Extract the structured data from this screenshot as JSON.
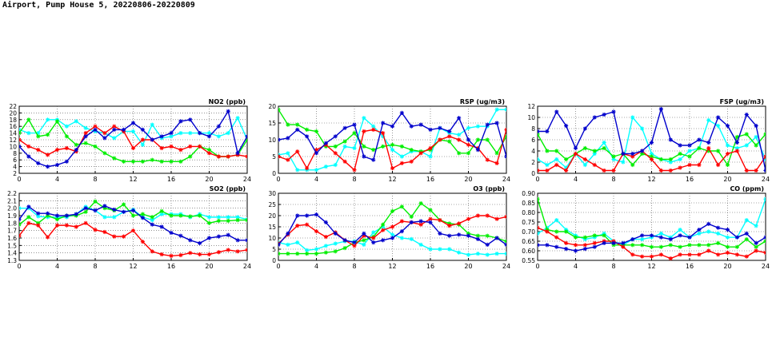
{
  "page": {
    "title": "Airport, Pump House 5, 20220806-20220809"
  },
  "colors": {
    "series": [
      "#0000cc",
      "#ff0000",
      "#00ee00",
      "#00ffff"
    ],
    "grid": "#555555",
    "axis": "#000000"
  },
  "chart_data": [
    {
      "type": "line",
      "title": "NO2 (ppb)",
      "x": [
        0,
        1,
        2,
        3,
        4,
        5,
        6,
        7,
        8,
        9,
        10,
        11,
        12,
        13,
        14,
        15,
        16,
        17,
        18,
        19,
        20,
        21,
        22,
        23,
        24
      ],
      "xlim": [
        0,
        24
      ],
      "xticks": [
        "0",
        "4",
        "8",
        "12",
        "16",
        "20",
        "24"
      ],
      "ylim": [
        2,
        22
      ],
      "yticks": [
        "2",
        "4",
        "6",
        "8",
        "10",
        "12",
        "14",
        "16",
        "18",
        "20",
        "22"
      ],
      "series": [
        {
          "name": "blue",
          "values": [
            10,
            7,
            5,
            4,
            4.5,
            5.5,
            9,
            13,
            15,
            12.5,
            15,
            15,
            17,
            15,
            12,
            13,
            14,
            17.5,
            18,
            14,
            13,
            16,
            20.5,
            8,
            13
          ]
        },
        {
          "name": "red",
          "values": [
            12,
            10,
            9,
            7.5,
            9,
            9.5,
            8.5,
            14,
            16,
            14,
            16,
            14.5,
            9.5,
            12,
            12,
            9.5,
            10,
            9,
            10,
            10,
            8,
            7,
            7,
            7.5,
            7
          ]
        },
        {
          "name": "green",
          "values": [
            14,
            18,
            13,
            13.5,
            17.5,
            13,
            10.5,
            11,
            10,
            8,
            6.5,
            5.5,
            5.5,
            5.5,
            6,
            5.5,
            5.5,
            5.5,
            7,
            10,
            9,
            7,
            7,
            7.5,
            12
          ]
        },
        {
          "name": "cyan",
          "values": [
            15,
            14,
            14,
            18,
            18,
            16,
            17.5,
            15.5,
            14.5,
            14,
            12.5,
            14.5,
            14.5,
            10.5,
            16.5,
            12.5,
            13,
            14,
            14,
            14,
            14,
            13,
            14,
            18.5,
            12
          ]
        }
      ]
    },
    {
      "type": "line",
      "title": "RSP (ug/m3)",
      "x": [
        0,
        1,
        2,
        3,
        4,
        5,
        6,
        7,
        8,
        9,
        10,
        11,
        12,
        13,
        14,
        15,
        16,
        17,
        18,
        19,
        20,
        21,
        22,
        23,
        24
      ],
      "xlim": [
        0,
        24
      ],
      "xticks": [
        "0",
        "4",
        "8",
        "12",
        "16",
        "20",
        "24"
      ],
      "ylim": [
        0,
        20
      ],
      "yticks": [
        "0",
        "5",
        "10",
        "15",
        "20"
      ],
      "series": [
        {
          "name": "blue",
          "values": [
            10,
            10.5,
            13,
            11,
            6,
            9,
            11,
            13.5,
            14.5,
            5,
            4,
            15,
            14,
            18,
            14,
            14.5,
            13,
            13.5,
            12.5,
            16.5,
            10,
            7,
            14.5,
            15,
            5
          ]
        },
        {
          "name": "red",
          "values": [
            5,
            4,
            6.5,
            1.5,
            7,
            8.5,
            6,
            3.5,
            1,
            12.5,
            13,
            12,
            1.5,
            3,
            3.5,
            6,
            7.5,
            10,
            11,
            10,
            8.5,
            7.5,
            4,
            3,
            13
          ]
        },
        {
          "name": "green",
          "values": [
            19,
            14.5,
            14.5,
            13,
            12.5,
            8,
            8,
            9.5,
            12,
            8,
            7,
            8,
            8.5,
            8,
            7,
            6.5,
            7,
            10,
            9.5,
            6,
            6,
            10,
            10,
            6,
            11
          ]
        },
        {
          "name": "cyan",
          "values": [
            5.5,
            6,
            1,
            1,
            1,
            2,
            2.5,
            8,
            7.5,
            16.5,
            14,
            11,
            7,
            5,
            6.5,
            6.5,
            5,
            13.5,
            12,
            11.5,
            13.5,
            14,
            14,
            19,
            19
          ]
        }
      ]
    },
    {
      "type": "line",
      "title": "FSP (ug/m3)",
      "x": [
        0,
        1,
        2,
        3,
        4,
        5,
        6,
        7,
        8,
        9,
        10,
        11,
        12,
        13,
        14,
        15,
        16,
        17,
        18,
        19,
        20,
        21,
        22,
        23,
        24
      ],
      "xlim": [
        0,
        24
      ],
      "xticks": [
        "0",
        "4",
        "8",
        "12",
        "16",
        "20",
        "24"
      ],
      "ylim": [
        0,
        12
      ],
      "yticks": [
        "0",
        "2",
        "4",
        "6",
        "8",
        "10",
        "12"
      ],
      "series": [
        {
          "name": "blue",
          "values": [
            7.5,
            7.5,
            11,
            8.5,
            4.5,
            8,
            10,
            10.5,
            11,
            3.5,
            3.5,
            4,
            5.5,
            11.5,
            6,
            5,
            5,
            6,
            5.5,
            10,
            8.5,
            5.5,
            10.5,
            8.5,
            0.5
          ]
        },
        {
          "name": "red",
          "values": [
            0.5,
            0.5,
            1.5,
            0.5,
            3.5,
            2.5,
            1.5,
            0.5,
            0.5,
            3.5,
            3,
            4,
            2.5,
            0.5,
            0.5,
            1,
            1.5,
            1.5,
            4.5,
            1.5,
            3.5,
            4,
            0.5,
            0.5,
            3
          ]
        },
        {
          "name": "green",
          "values": [
            7,
            4,
            4,
            2.5,
            3.5,
            4.5,
            4,
            4.5,
            3,
            3.5,
            1.5,
            3.5,
            3,
            2.5,
            2.5,
            3.5,
            3,
            4.5,
            4,
            4,
            1.5,
            6.5,
            7,
            5,
            7
          ]
        },
        {
          "name": "cyan",
          "values": [
            2.5,
            1.5,
            2.5,
            1,
            3.5,
            1.5,
            3.5,
            5.5,
            2.5,
            2,
            10,
            8,
            3.5,
            2.5,
            2,
            2.5,
            4,
            4.5,
            9.5,
            8.5,
            5,
            4.5,
            5,
            6.5,
            2.5
          ]
        }
      ]
    },
    {
      "type": "line",
      "title": "SO2 (ppb)",
      "x": [
        0,
        1,
        2,
        3,
        4,
        5,
        6,
        7,
        8,
        9,
        10,
        11,
        12,
        13,
        14,
        15,
        16,
        17,
        18,
        19,
        20,
        21,
        22,
        23,
        24
      ],
      "xlim": [
        0,
        24
      ],
      "xticks": [
        "0",
        "4",
        "8",
        "12",
        "16",
        "20",
        "24"
      ],
      "ylim": [
        1.3,
        2.2
      ],
      "yticks": [
        "1.3",
        "1.4",
        "1.5",
        "1.6",
        "1.7",
        "1.8",
        "1.9",
        "2.0",
        "2.1",
        "2.2"
      ],
      "series": [
        {
          "name": "blue",
          "values": [
            1.85,
            2.02,
            1.93,
            1.93,
            1.9,
            1.9,
            1.92,
            2.0,
            1.97,
            2.03,
            1.98,
            1.95,
            1.97,
            1.87,
            1.78,
            1.75,
            1.67,
            1.63,
            1.57,
            1.53,
            1.6,
            1.62,
            1.64,
            1.57,
            1.57
          ]
        },
        {
          "name": "red",
          "values": [
            1.63,
            1.8,
            1.77,
            1.61,
            1.77,
            1.77,
            1.75,
            1.8,
            1.71,
            1.68,
            1.62,
            1.62,
            1.7,
            1.55,
            1.42,
            1.38,
            1.36,
            1.37,
            1.4,
            1.38,
            1.38,
            1.41,
            1.44,
            1.42,
            1.44
          ]
        },
        {
          "name": "green",
          "values": [
            1.78,
            1.88,
            1.8,
            1.9,
            1.85,
            1.9,
            1.9,
            1.95,
            2.09,
            2.0,
            1.97,
            2.05,
            1.9,
            1.92,
            1.88,
            1.96,
            1.9,
            1.9,
            1.89,
            1.9,
            1.8,
            1.83,
            1.83,
            1.84,
            1.84
          ]
        },
        {
          "name": "cyan",
          "values": [
            2.0,
            2.0,
            1.89,
            1.88,
            1.88,
            1.88,
            1.92,
            2.02,
            1.97,
            1.88,
            1.88,
            1.95,
            1.98,
            1.88,
            1.84,
            1.92,
            1.92,
            1.92,
            1.88,
            1.92,
            1.88,
            1.88,
            1.88,
            1.88,
            1.85
          ]
        }
      ]
    },
    {
      "type": "line",
      "title": "O3 (ppb)",
      "x": [
        0,
        1,
        2,
        3,
        4,
        5,
        6,
        7,
        8,
        9,
        10,
        11,
        12,
        13,
        14,
        15,
        16,
        17,
        18,
        19,
        20,
        21,
        22,
        23,
        24
      ],
      "xlim": [
        0,
        24
      ],
      "xticks": [
        "0",
        "4",
        "8",
        "12",
        "16",
        "20",
        "24"
      ],
      "ylim": [
        0,
        30
      ],
      "yticks": [
        "0",
        "5",
        "10",
        "15",
        "20",
        "25",
        "30"
      ],
      "series": [
        {
          "name": "blue",
          "values": [
            7,
            12,
            20,
            20,
            20.5,
            17,
            12,
            9,
            8,
            12,
            8,
            9,
            10,
            13,
            17,
            17.5,
            17,
            12,
            11,
            11.5,
            11,
            9.5,
            7,
            10,
            7
          ]
        },
        {
          "name": "red",
          "values": [
            7.5,
            11.5,
            15.5,
            16,
            13,
            10.5,
            12.5,
            9,
            6.5,
            11,
            10,
            13.5,
            15,
            17.5,
            17,
            16,
            18.5,
            18,
            15.5,
            16.5,
            18.5,
            20,
            20,
            18.5,
            19.5
          ]
        },
        {
          "name": "green",
          "values": [
            3,
            3,
            3,
            3,
            3,
            3.5,
            4,
            5.5,
            8,
            9,
            10.5,
            16,
            22,
            24,
            19.5,
            25.5,
            22.5,
            18,
            16.5,
            16,
            12,
            11,
            11,
            10,
            8.5
          ]
        },
        {
          "name": "cyan",
          "values": [
            8,
            7,
            8,
            4.5,
            5,
            6.5,
            7.5,
            8.5,
            8.5,
            7,
            12.5,
            15,
            11.5,
            10,
            9.5,
            7,
            5,
            5,
            5,
            3.5,
            2.5,
            3,
            2.5,
            3,
            3
          ]
        }
      ]
    },
    {
      "type": "line",
      "title": "CO (ppm)",
      "x": [
        0,
        1,
        2,
        3,
        4,
        5,
        6,
        7,
        8,
        9,
        10,
        11,
        12,
        13,
        14,
        15,
        16,
        17,
        18,
        19,
        20,
        21,
        22,
        23,
        24
      ],
      "xlim": [
        0,
        24
      ],
      "xticks": [
        "0",
        "4",
        "8",
        "12",
        "16",
        "20",
        "24"
      ],
      "ylim": [
        0.55,
        0.9
      ],
      "yticks": [
        "0.55",
        "0.60",
        "0.65",
        "0.70",
        "0.75",
        "0.80",
        "0.85",
        "0.90"
      ],
      "series": [
        {
          "name": "blue",
          "values": [
            0.63,
            0.63,
            0.62,
            0.61,
            0.6,
            0.61,
            0.62,
            0.64,
            0.64,
            0.64,
            0.66,
            0.68,
            0.68,
            0.67,
            0.66,
            0.68,
            0.67,
            0.71,
            0.74,
            0.72,
            0.71,
            0.67,
            0.69,
            0.64,
            0.67
          ]
        },
        {
          "name": "red",
          "values": [
            0.72,
            0.7,
            0.67,
            0.64,
            0.63,
            0.63,
            0.64,
            0.65,
            0.65,
            0.62,
            0.58,
            0.57,
            0.57,
            0.58,
            0.56,
            0.58,
            0.58,
            0.58,
            0.6,
            0.58,
            0.59,
            0.58,
            0.57,
            0.6,
            0.59
          ]
        },
        {
          "name": "green",
          "values": [
            0.87,
            0.71,
            0.7,
            0.7,
            0.67,
            0.67,
            0.68,
            0.68,
            0.63,
            0.63,
            0.63,
            0.63,
            0.62,
            0.62,
            0.63,
            0.62,
            0.63,
            0.63,
            0.63,
            0.64,
            0.62,
            0.62,
            0.66,
            0.62,
            0.65
          ]
        },
        {
          "name": "cyan",
          "values": [
            0.69,
            0.72,
            0.76,
            0.71,
            0.68,
            0.66,
            0.67,
            0.69,
            0.65,
            0.63,
            0.66,
            0.66,
            0.67,
            0.69,
            0.67,
            0.71,
            0.67,
            0.69,
            0.7,
            0.69,
            0.67,
            0.67,
            0.76,
            0.73,
            0.87
          ]
        }
      ]
    }
  ]
}
